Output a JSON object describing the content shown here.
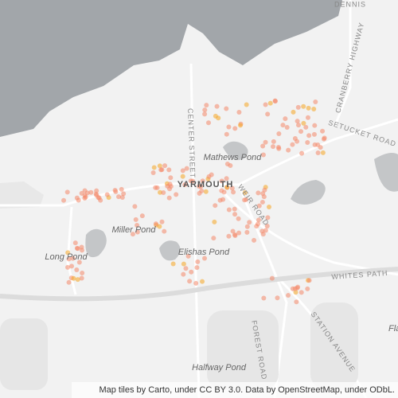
{
  "labels": {
    "dennis": "DENNIS",
    "cranberry": "CRANBERRY HIGHWAY",
    "setucket": "SETUCKET ROAD",
    "center": "CENTER STREET",
    "mathews": "Mathews Pond",
    "yarmouth": "YARMOUTH",
    "weir": "WEIR ROAD",
    "miller": "Miller Pond",
    "long": "Long Pond",
    "elishas": "Elishas Pond",
    "whites": "WHITES PATH",
    "station": "STATION AVENUE",
    "forest": "FOREST ROAD",
    "halfway": "Halfway Pond",
    "fla": "Fla"
  },
  "attribution": "Map tiles by Carto, under CC BY 3.0. Data by OpenStreetMap, under ODbL."
}
